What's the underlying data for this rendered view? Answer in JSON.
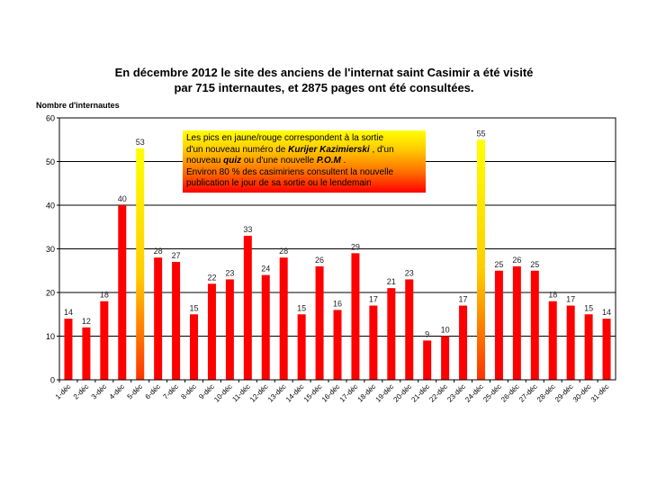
{
  "chart_data": {
    "type": "bar",
    "title_line1": "En décembre 2012 le site des anciens de l'internat saint Casimir a été visité",
    "title_line2": "par 715  internautes, et 2875 pages ont été consultées.",
    "ylabel": "Nombre d'internautes",
    "xlabel": "",
    "ylim": [
      0,
      60
    ],
    "yticks": [
      0,
      10,
      20,
      30,
      40,
      50,
      60
    ],
    "grid": true,
    "categories": [
      "1-déc",
      "2-déc",
      "3-déc",
      "4-déc",
      "5-déc",
      "6-déc",
      "7-déc",
      "8-déc",
      "9-déc",
      "10-déc",
      "11-déc",
      "12-déc",
      "13-déc",
      "14-déc",
      "15-déc",
      "16-déc",
      "17-déc",
      "18-déc",
      "19-déc",
      "20-déc",
      "21-déc",
      "22-déc",
      "23-déc",
      "24-déc",
      "25-déc",
      "26-déc",
      "27-déc",
      "28-déc",
      "29-déc",
      "30-déc",
      "31-déc"
    ],
    "values": [
      14,
      12,
      18,
      40,
      53,
      28,
      27,
      15,
      22,
      23,
      33,
      24,
      28,
      15,
      26,
      16,
      29,
      17,
      21,
      23,
      9,
      10,
      17,
      55,
      25,
      26,
      25,
      18,
      17,
      15,
      14
    ],
    "highlighted_categories": [
      "5-déc",
      "24-déc"
    ],
    "colors": {
      "bar": "#ff0000",
      "highlight_top": "#ffff00",
      "highlight_bottom": "#ff0000",
      "grid": "#000000"
    }
  },
  "annotation": {
    "line1": "Les pics en jaune/rouge correspondent à la sortie",
    "line2_pre": "d'un nouveau numéro de ",
    "line2_em": "Kurijer Kazimierski",
    "line2_post": " , d'un",
    "line3_pre": "nouveau ",
    "line3_em1": "quiz",
    "line3_mid": "  ou d'une nouvelle ",
    "line3_em2": "P.O.M",
    "line3_post": " .",
    "line4": "Environ 80 % des casimiriens consultent la nouvelle",
    "line5": "publication le jour de sa sortie ou le lendemain"
  }
}
